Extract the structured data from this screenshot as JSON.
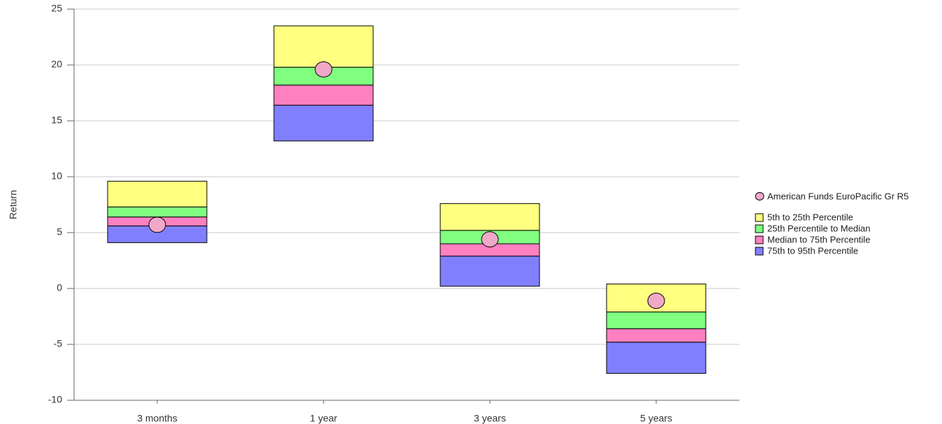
{
  "chart_data": {
    "type": "floating_bar",
    "y_label": "Return",
    "categories": [
      "3 months",
      "1 year",
      "3 years",
      "5 years"
    ],
    "ylim": [
      -10,
      25
    ],
    "yticks": [
      -10,
      -5,
      0,
      5,
      10,
      15,
      20,
      25
    ],
    "grid": true,
    "series": [
      {
        "name": "75th to 95th Percentile",
        "color": "#8080ff",
        "low": [
          4.1,
          13.2,
          0.2,
          -7.6
        ],
        "high": [
          5.6,
          16.4,
          2.9,
          -4.8
        ]
      },
      {
        "name": "Median to 75th Percentile",
        "color": "#ff80c0",
        "low": [
          5.6,
          16.4,
          2.9,
          -4.8
        ],
        "high": [
          6.4,
          18.2,
          4.0,
          -3.6
        ]
      },
      {
        "name": "25th Percentile to Median",
        "color": "#80ff80",
        "low": [
          6.4,
          18.2,
          4.0,
          -3.6
        ],
        "high": [
          7.3,
          19.8,
          5.2,
          -2.1
        ]
      },
      {
        "name": "5th to 25th Percentile",
        "color": "#ffff80",
        "low": [
          7.3,
          19.8,
          5.2,
          -2.1
        ],
        "high": [
          9.6,
          23.5,
          7.6,
          0.4
        ]
      }
    ],
    "fund": {
      "name": "American Funds EuroPacific Gr R5",
      "color": "#f0a8c8",
      "values": [
        5.7,
        19.6,
        4.4,
        -1.1
      ]
    }
  }
}
